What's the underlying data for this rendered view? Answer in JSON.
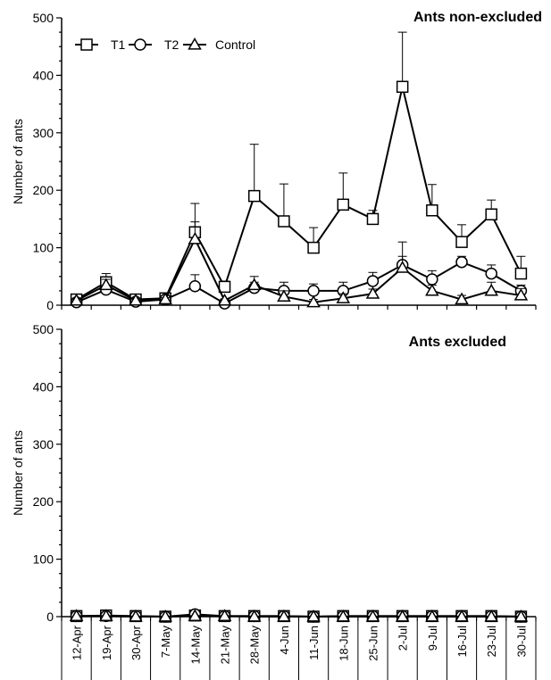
{
  "chart_data": [
    {
      "type": "line",
      "title": "Ants non-excluded",
      "ylabel": "Number of ants",
      "xlabel": "",
      "ylim": [
        0,
        500
      ],
      "yticks": [
        0,
        100,
        200,
        300,
        400,
        500
      ],
      "categories": [
        "12-Apr",
        "19-Apr",
        "30-Apr",
        "7-May",
        "14-May",
        "21-May",
        "28-May",
        "4-Jun",
        "11-Jun",
        "18-Jun",
        "25-Jun",
        "2-Jul",
        "9-Jul",
        "16-Jul",
        "23-Jul",
        "30-Jul"
      ],
      "legend": "top-left",
      "series": [
        {
          "name": "T1",
          "marker": "square",
          "values": [
            10,
            40,
            10,
            12,
            127,
            32,
            190,
            146,
            100,
            175,
            150,
            380,
            165,
            110,
            158,
            55
          ],
          "errors": [
            5,
            15,
            3,
            3,
            50,
            10,
            90,
            65,
            35,
            55,
            15,
            95,
            45,
            30,
            25,
            30
          ]
        },
        {
          "name": "T2",
          "marker": "circle",
          "values": [
            5,
            27,
            6,
            10,
            33,
            3,
            30,
            25,
            25,
            25,
            42,
            70,
            45,
            75,
            55,
            25
          ],
          "errors": [
            3,
            8,
            2,
            3,
            20,
            2,
            10,
            15,
            12,
            15,
            15,
            40,
            15,
            10,
            15,
            10
          ]
        },
        {
          "name": "Control",
          "marker": "triangle",
          "values": [
            8,
            35,
            8,
            10,
            115,
            8,
            35,
            15,
            5,
            12,
            20,
            65,
            25,
            10,
            25,
            17
          ],
          "errors": [
            3,
            10,
            3,
            3,
            30,
            3,
            15,
            10,
            5,
            8,
            8,
            20,
            10,
            7,
            15,
            12
          ]
        }
      ]
    },
    {
      "type": "line",
      "title": "Ants excluded",
      "ylabel": "Number of ants",
      "xlabel": "",
      "ylim": [
        0,
        500
      ],
      "yticks": [
        0,
        100,
        200,
        300,
        400,
        500
      ],
      "categories": [
        "12-Apr",
        "19-Apr",
        "30-Apr",
        "7-May",
        "14-May",
        "21-May",
        "28-May",
        "4-Jun",
        "11-Jun",
        "18-Jun",
        "25-Jun",
        "2-Jul",
        "9-Jul",
        "16-Jul",
        "23-Jul",
        "30-Jul"
      ],
      "series": [
        {
          "name": "T1",
          "marker": "square",
          "values": [
            1,
            2,
            1,
            0,
            2,
            1,
            1,
            1,
            0,
            1,
            1,
            1,
            1,
            1,
            1,
            0
          ]
        },
        {
          "name": "T2",
          "marker": "circle",
          "values": [
            1,
            1,
            1,
            0,
            4,
            1,
            1,
            1,
            0,
            1,
            1,
            1,
            1,
            1,
            1,
            0
          ]
        },
        {
          "name": "Control",
          "marker": "triangle",
          "values": [
            1,
            1,
            0,
            0,
            1,
            1,
            0,
            0,
            0,
            0,
            0,
            0,
            0,
            0,
            0,
            0
          ]
        }
      ]
    }
  ]
}
